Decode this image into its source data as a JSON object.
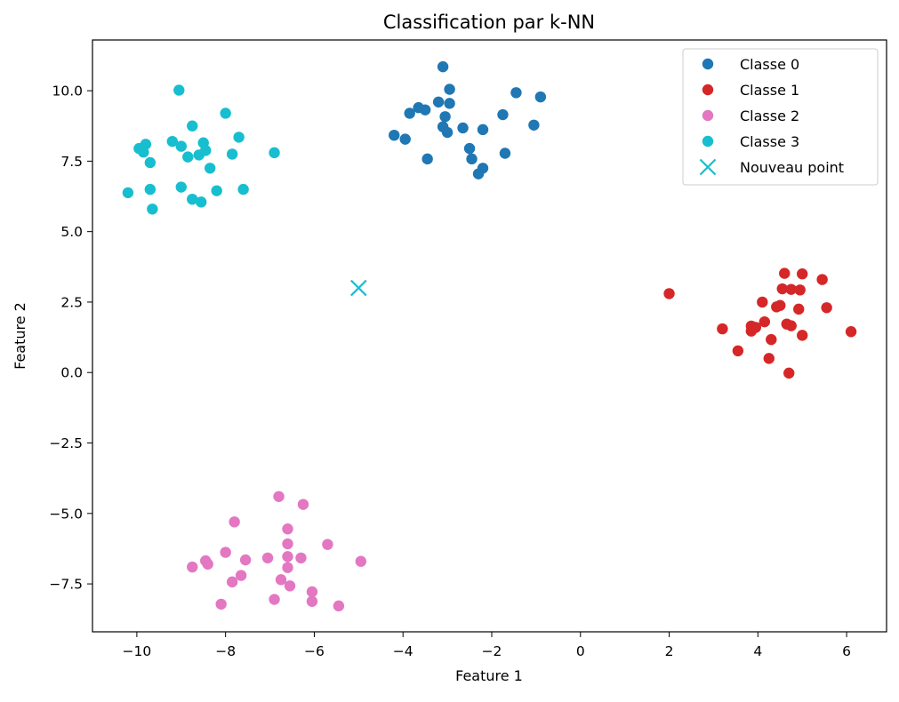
{
  "chart_data": {
    "type": "scatter",
    "title": "Classification par k-NN",
    "xlabel": "Feature 1",
    "ylabel": "Feature 2",
    "xlim": [
      -11,
      6.9
    ],
    "ylim": [
      -9.2,
      11.8
    ],
    "xticks": [
      -10,
      -8,
      -6,
      -4,
      -2,
      0,
      2,
      4,
      6
    ],
    "xtick_labels": [
      "−10",
      "−8",
      "−6",
      "−4",
      "−2",
      "0",
      "2",
      "4",
      "6"
    ],
    "yticks": [
      -7.5,
      -5.0,
      -2.5,
      0.0,
      2.5,
      5.0,
      7.5,
      10.0
    ],
    "ytick_labels": [
      "−7.5",
      "−5.0",
      "−2.5",
      "0.0",
      "2.5",
      "5.0",
      "7.5",
      "10.0"
    ],
    "grid": false,
    "legend_position": "top-right",
    "series": [
      {
        "name": "Classe 0",
        "color": "#1f77b4",
        "marker": "circle",
        "points": [
          [
            -3.1,
            10.85
          ],
          [
            -2.95,
            10.05
          ],
          [
            -1.45,
            9.93
          ],
          [
            -0.9,
            9.78
          ],
          [
            -3.2,
            9.6
          ],
          [
            -2.95,
            9.55
          ],
          [
            -3.65,
            9.4
          ],
          [
            -3.5,
            9.32
          ],
          [
            -3.85,
            9.2
          ],
          [
            -1.75,
            9.15
          ],
          [
            -3.05,
            9.08
          ],
          [
            -1.05,
            8.78
          ],
          [
            -3.1,
            8.72
          ],
          [
            -2.65,
            8.68
          ],
          [
            -2.2,
            8.62
          ],
          [
            -3.0,
            8.52
          ],
          [
            -4.2,
            8.42
          ],
          [
            -3.95,
            8.28
          ],
          [
            -2.5,
            7.95
          ],
          [
            -1.7,
            7.78
          ],
          [
            -2.45,
            7.58
          ],
          [
            -3.45,
            7.58
          ],
          [
            -2.2,
            7.25
          ],
          [
            -2.3,
            7.05
          ]
        ]
      },
      {
        "name": "Classe 1",
        "color": "#d62728",
        "marker": "circle",
        "points": [
          [
            4.6,
            3.52
          ],
          [
            5.0,
            3.5
          ],
          [
            5.45,
            3.3
          ],
          [
            4.55,
            2.97
          ],
          [
            4.75,
            2.95
          ],
          [
            4.95,
            2.93
          ],
          [
            2.0,
            2.8
          ],
          [
            4.1,
            2.5
          ],
          [
            4.5,
            2.38
          ],
          [
            4.42,
            2.33
          ],
          [
            5.55,
            2.3
          ],
          [
            4.92,
            2.25
          ],
          [
            4.15,
            1.8
          ],
          [
            4.65,
            1.72
          ],
          [
            4.75,
            1.66
          ],
          [
            3.85,
            1.65
          ],
          [
            3.95,
            1.6
          ],
          [
            3.2,
            1.55
          ],
          [
            3.85,
            1.47
          ],
          [
            6.1,
            1.45
          ],
          [
            5.0,
            1.32
          ],
          [
            4.3,
            1.17
          ],
          [
            3.55,
            0.77
          ],
          [
            4.25,
            0.5
          ],
          [
            4.7,
            -0.02
          ]
        ]
      },
      {
        "name": "Classe 2",
        "color": "#e377c2",
        "marker": "circle",
        "points": [
          [
            -6.8,
            -4.4
          ],
          [
            -6.25,
            -4.68
          ],
          [
            -7.8,
            -5.3
          ],
          [
            -6.6,
            -5.55
          ],
          [
            -6.6,
            -6.08
          ],
          [
            -5.7,
            -6.1
          ],
          [
            -8.0,
            -6.38
          ],
          [
            -7.05,
            -6.58
          ],
          [
            -6.6,
            -6.53
          ],
          [
            -6.3,
            -6.58
          ],
          [
            -7.55,
            -6.65
          ],
          [
            -8.45,
            -6.68
          ],
          [
            -4.95,
            -6.7
          ],
          [
            -8.4,
            -6.8
          ],
          [
            -8.75,
            -6.9
          ],
          [
            -6.6,
            -6.92
          ],
          [
            -7.65,
            -7.2
          ],
          [
            -6.75,
            -7.35
          ],
          [
            -7.85,
            -7.43
          ],
          [
            -6.55,
            -7.57
          ],
          [
            -6.05,
            -7.78
          ],
          [
            -6.9,
            -8.05
          ],
          [
            -6.05,
            -8.12
          ],
          [
            -8.1,
            -8.22
          ],
          [
            -5.45,
            -8.28
          ]
        ]
      },
      {
        "name": "Classe 3",
        "color": "#17becf",
        "marker": "circle",
        "points": [
          [
            -9.05,
            10.02
          ],
          [
            -8.0,
            9.2
          ],
          [
            -8.75,
            8.75
          ],
          [
            -7.7,
            8.35
          ],
          [
            -9.2,
            8.2
          ],
          [
            -8.5,
            8.15
          ],
          [
            -9.8,
            8.1
          ],
          [
            -9.0,
            8.03
          ],
          [
            -9.95,
            7.95
          ],
          [
            -8.45,
            7.88
          ],
          [
            -9.85,
            7.82
          ],
          [
            -6.9,
            7.8
          ],
          [
            -7.85,
            7.75
          ],
          [
            -8.6,
            7.72
          ],
          [
            -8.85,
            7.65
          ],
          [
            -9.7,
            7.45
          ],
          [
            -8.35,
            7.25
          ],
          [
            -9.0,
            6.58
          ],
          [
            -9.7,
            6.5
          ],
          [
            -7.6,
            6.5
          ],
          [
            -8.2,
            6.45
          ],
          [
            -10.2,
            6.38
          ],
          [
            -8.75,
            6.15
          ],
          [
            -8.55,
            6.05
          ],
          [
            -9.65,
            5.8
          ]
        ]
      },
      {
        "name": "Nouveau point",
        "color": "#17becf",
        "marker": "x",
        "points": [
          [
            -5.0,
            3.0
          ]
        ]
      }
    ]
  }
}
